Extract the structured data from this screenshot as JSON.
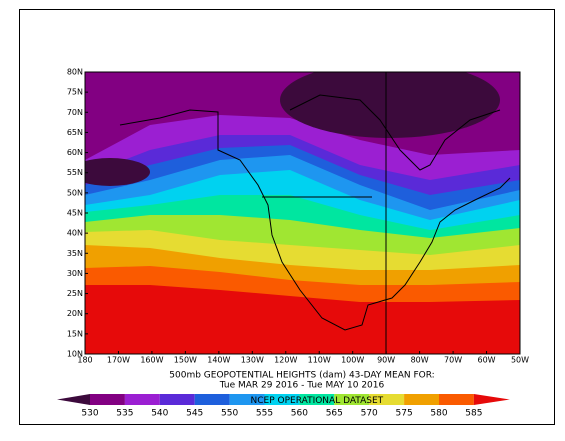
{
  "map": {
    "title": "500mb GEOPOTENTIAL HEIGHTS (dam)   43-DAY MEAN FOR:",
    "subtitle": "Tue MAR 29 2016 - Tue MAY 10 2016",
    "dataset": "NCEP OPERATIONAL DATASET",
    "lat_labels": [
      "80N",
      "75N",
      "70N",
      "65N",
      "60N",
      "55N",
      "50N",
      "45N",
      "40N",
      "35N",
      "30N",
      "25N",
      "20N",
      "15N",
      "10N"
    ],
    "lon_labels": [
      "180",
      "170W",
      "160W",
      "150W",
      "140W",
      "130W",
      "120W",
      "110W",
      "100W",
      "90W",
      "80W",
      "70W",
      "60W",
      "50W"
    ],
    "levels": [
      530,
      535,
      540,
      545,
      550,
      555,
      560,
      565,
      570,
      575,
      580,
      585
    ],
    "colors": [
      "#3c0a3c",
      "#820082",
      "#9b1fd2",
      "#5a2ad8",
      "#1e5fdc",
      "#1e96f0",
      "#00d2f0",
      "#00e6a0",
      "#a0e632",
      "#e6dc32",
      "#f0a000",
      "#fa5a00",
      "#e60a0a"
    ]
  }
}
